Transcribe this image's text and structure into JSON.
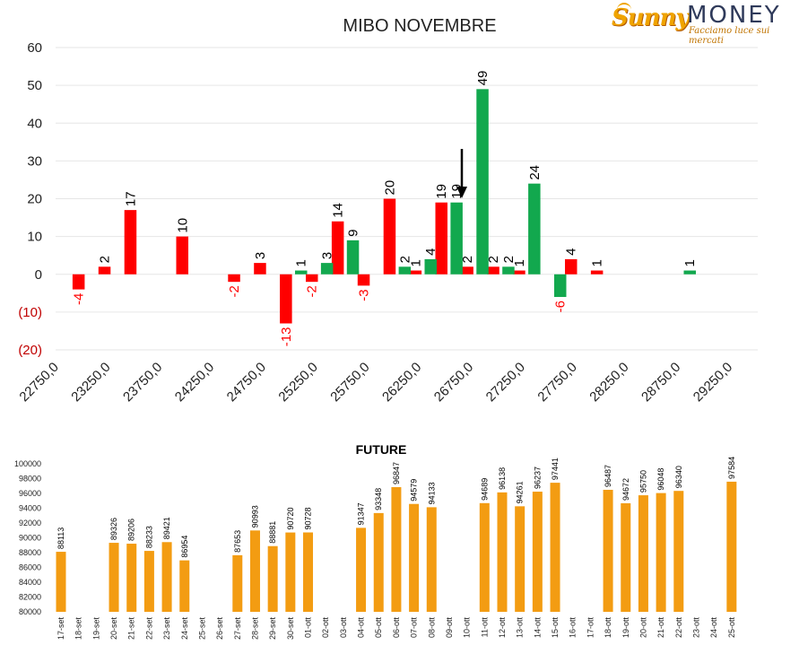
{
  "logo": {
    "brand_part1": "Sunny",
    "brand_part2": "MONEY",
    "tagline": "Facciamo luce sui mercati"
  },
  "colors": {
    "green": "#12a84e",
    "red": "#ff0000",
    "orange": "#f39c12",
    "axis_negative": "#c00000"
  },
  "chart_data": [
    {
      "type": "bar",
      "title": "MIBO NOVEMBRE",
      "ylim": [
        -20,
        60
      ],
      "y_ticks": [
        "60",
        "50",
        "40",
        "30",
        "20",
        "10",
        "0",
        "(10)",
        "(20)"
      ],
      "x_ticks": [
        "22750,0",
        "23250,0",
        "23750,0",
        "24250,0",
        "24750,0",
        "25250,0",
        "25750,0",
        "26250,0",
        "26750,0",
        "27250,0",
        "27750,0",
        "28250,0",
        "28750,0",
        "29250,0"
      ],
      "grid": true,
      "annotation": "down arrow marker",
      "bars": [
        {
          "x": 23000,
          "color": "red",
          "value": -4
        },
        {
          "x": 23250,
          "color": "red",
          "value": 2
        },
        {
          "x": 23500,
          "color": "red",
          "value": 17
        },
        {
          "x": 24000,
          "color": "red",
          "value": 10
        },
        {
          "x": 24500,
          "color": "red",
          "value": -2
        },
        {
          "x": 24750,
          "color": "red",
          "value": 3
        },
        {
          "x": 25000,
          "color": "red",
          "value": -13
        },
        {
          "x": 25250,
          "color": "red",
          "value": -2
        },
        {
          "x": 25250,
          "color": "green",
          "value": 1
        },
        {
          "x": 25500,
          "color": "red",
          "value": 14
        },
        {
          "x": 25500,
          "color": "green",
          "value": 3
        },
        {
          "x": 25750,
          "color": "red",
          "value": -3
        },
        {
          "x": 25750,
          "color": "green",
          "value": 9
        },
        {
          "x": 26000,
          "color": "red",
          "value": 20
        },
        {
          "x": 26250,
          "color": "red",
          "value": 1
        },
        {
          "x": 26250,
          "color": "green",
          "value": 2
        },
        {
          "x": 26500,
          "color": "red",
          "value": 19
        },
        {
          "x": 26500,
          "color": "green",
          "value": 4
        },
        {
          "x": 26750,
          "color": "red",
          "value": 2
        },
        {
          "x": 26750,
          "color": "green",
          "value": 19
        },
        {
          "x": 27000,
          "color": "red",
          "value": 2
        },
        {
          "x": 27000,
          "color": "green",
          "value": 49
        },
        {
          "x": 27250,
          "color": "red",
          "value": 1
        },
        {
          "x": 27250,
          "color": "green",
          "value": 2
        },
        {
          "x": 27500,
          "color": "green",
          "value": 24
        },
        {
          "x": 27750,
          "color": "red",
          "value": 4
        },
        {
          "x": 27750,
          "color": "green",
          "value": -6
        },
        {
          "x": 28000,
          "color": "red",
          "value": 1
        },
        {
          "x": 29000,
          "color": "green",
          "value": 1
        }
      ]
    },
    {
      "type": "bar",
      "title": "FUTURE",
      "ylim": [
        80000,
        100000
      ],
      "y_ticks": [
        "100000",
        "98000",
        "96000",
        "94000",
        "92000",
        "90000",
        "88000",
        "86000",
        "84000",
        "82000",
        "80000"
      ],
      "categories": [
        "17-set",
        "18-set",
        "19-set",
        "20-set",
        "21-set",
        "22-set",
        "23-set",
        "24-set",
        "25-set",
        "26-set",
        "27-set",
        "28-set",
        "29-set",
        "30-set",
        "01-ott",
        "02-ott",
        "03-ott",
        "04-ott",
        "05-ott",
        "06-ott",
        "07-ott",
        "08-ott",
        "09-ott",
        "10-ott",
        "11-ott",
        "12-ott",
        "13-ott",
        "14-ott",
        "15-ott",
        "16-ott",
        "17-ott",
        "18-ott",
        "19-ott",
        "20-ott",
        "21-ott",
        "22-ott",
        "23-ott",
        "24-ott",
        "25-ott"
      ],
      "values": [
        88113,
        null,
        null,
        89326,
        89206,
        88233,
        89421,
        86954,
        null,
        null,
        87653,
        90993,
        88881,
        90720,
        90728,
        null,
        null,
        91347,
        93348,
        96847,
        94579,
        94133,
        null,
        null,
        94689,
        96138,
        94261,
        96237,
        97441,
        null,
        null,
        96487,
        94672,
        95750,
        96048,
        96340,
        null,
        null,
        97584
      ],
      "grid": false
    }
  ]
}
